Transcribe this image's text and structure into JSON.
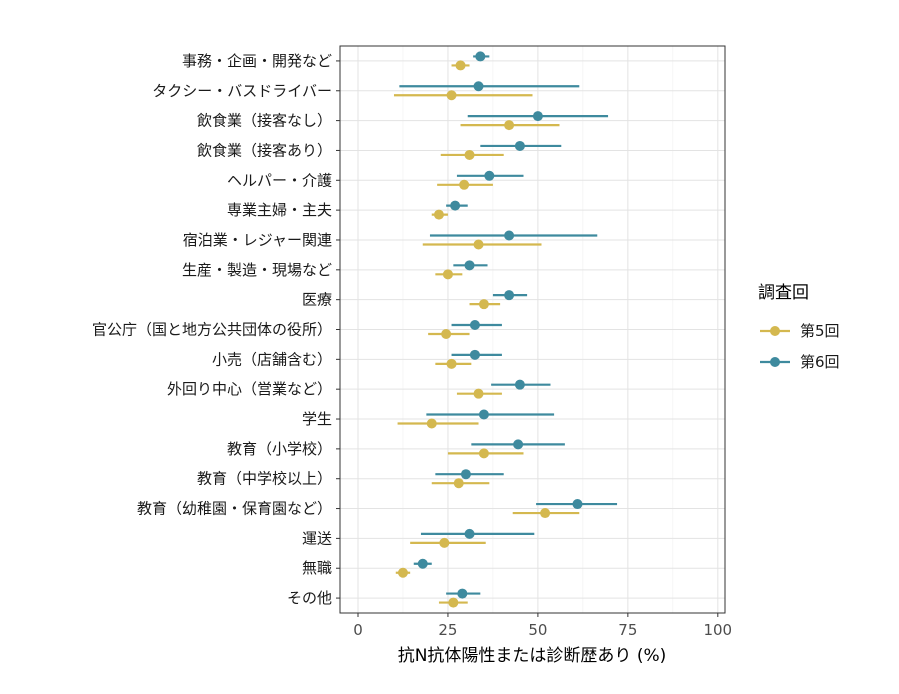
{
  "chart_data": {
    "type": "scatter",
    "subtype": "dot-with-error-bars",
    "orientation": "horizontal",
    "xlabel": "抗N抗体陽性または診断歴あり (%)",
    "ylabel": "",
    "xlim": [
      -5,
      102
    ],
    "xticks": [
      0,
      25,
      50,
      75,
      100
    ],
    "grid": true,
    "legend": {
      "title": "調査回",
      "position": "right"
    },
    "categories": [
      "事務・企画・開発など",
      "タクシー・バスドライバー",
      "飲食業（接客なし）",
      "飲食業（接客あり）",
      "ヘルパー・介護",
      "専業主婦・主夫",
      "宿泊業・レジャー関連",
      "生産・製造・現場など",
      "医療",
      "官公庁（国と地方公共団体の役所）",
      "小売（店舗含む）",
      "外回り中心（営業など）",
      "学生",
      "教育（小学校）",
      "教育（中学校以上）",
      "教育（幼稚園・保育園など）",
      "運送",
      "無職",
      "その他"
    ],
    "series": [
      {
        "name": "第5回",
        "color": "#d4b84f",
        "values": [
          28.5,
          26.0,
          42.0,
          31.0,
          29.5,
          22.5,
          33.5,
          25.0,
          35.0,
          24.5,
          26.0,
          33.5,
          20.5,
          35.0,
          28.0,
          52.0,
          24.0,
          12.5,
          26.5
        ],
        "lower": [
          26.0,
          10.0,
          28.5,
          23.0,
          22.0,
          20.5,
          18.0,
          21.5,
          31.0,
          19.5,
          21.5,
          27.5,
          11.0,
          25.0,
          20.5,
          43.0,
          14.5,
          10.5,
          22.5
        ],
        "upper": [
          31.0,
          48.5,
          56.0,
          40.5,
          37.5,
          25.0,
          51.0,
          29.0,
          39.5,
          31.0,
          31.5,
          40.0,
          33.5,
          46.0,
          36.5,
          61.5,
          35.5,
          14.5,
          30.5
        ]
      },
      {
        "name": "第6回",
        "color": "#3e8a9e",
        "values": [
          34.0,
          33.5,
          50.0,
          45.0,
          36.5,
          27.0,
          42.0,
          31.0,
          42.0,
          32.5,
          32.5,
          45.0,
          35.0,
          44.5,
          30.0,
          61.0,
          31.0,
          18.0,
          29.0
        ],
        "lower": [
          32.0,
          11.5,
          30.5,
          34.0,
          27.5,
          24.5,
          20.0,
          26.5,
          37.5,
          26.0,
          26.0,
          37.0,
          19.0,
          31.5,
          21.5,
          49.5,
          17.5,
          15.5,
          24.5
        ],
        "upper": [
          36.5,
          61.5,
          69.5,
          56.5,
          46.0,
          30.5,
          66.5,
          36.0,
          47.0,
          40.0,
          40.0,
          53.5,
          54.5,
          57.5,
          40.5,
          72.0,
          49.0,
          20.5,
          34.0
        ]
      }
    ]
  }
}
